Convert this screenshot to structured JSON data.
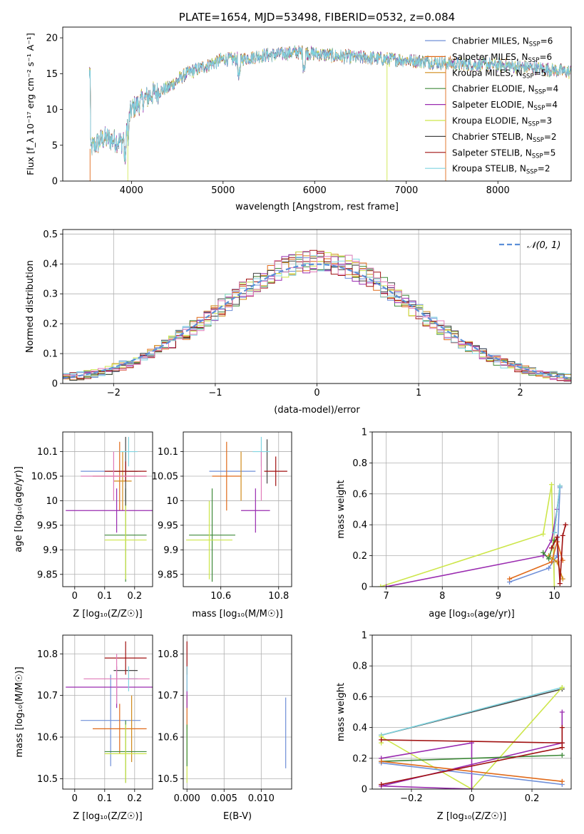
{
  "colors": {
    "chabrier_miles": "#6f8fd8",
    "salpeter_miles": "#e06a1a",
    "kroupa_miles": "#d18a1a",
    "chabrier_elodie": "#3f8a3a",
    "salpeter_elodie": "#9a2bb0",
    "kroupa_elodie": "#cde64a",
    "chabrier_stelib": "#444444",
    "salpeter_stelib": "#a01010",
    "kroupa_stelib": "#7fd4e0",
    "pink": "#e07ab8",
    "gaussian": "#5b8fd8",
    "grid": "#b0b0b0"
  },
  "chart_data": [
    {
      "id": "spectrum",
      "type": "line",
      "title": "PLATE=1654, MJD=53498, FIBERID=0532, z=0.084",
      "xlabel": "wavelength [Angstrom, rest frame]",
      "ylabel": "Flux [f_λ 10⁻¹⁷ erg cm⁻² s⁻¹ A⁻¹]",
      "xlim": [
        3250,
        8800
      ],
      "ylim": [
        0,
        21.5
      ],
      "xticks": [
        4000,
        5000,
        6000,
        7000,
        8000
      ],
      "yticks": [
        0,
        5,
        10,
        15,
        20
      ],
      "legend_position": "top-right",
      "continuum": {
        "x": [
          3550,
          3700,
          3900,
          4000,
          4200,
          4400,
          4600,
          4800,
          5000,
          5200,
          5400,
          5600,
          5800,
          6000,
          6200,
          6400,
          6600,
          6800,
          7000,
          7200,
          7400,
          7600,
          7800,
          8000,
          8200,
          8400,
          8600,
          8800
        ],
        "y": [
          4.5,
          6.0,
          5.5,
          10.0,
          12.0,
          13.0,
          15.0,
          16.0,
          17.0,
          17.0,
          17.5,
          17.7,
          18.0,
          17.8,
          17.5,
          17.3,
          17.2,
          17.0,
          16.9,
          16.7,
          16.5,
          16.3,
          16.3,
          16.2,
          16.0,
          15.8,
          15.5,
          15.2
        ]
      },
      "series": [
        {
          "name": "Chabrier MILES, N_SSP=6",
          "name_main": "Chabrier MILES, N",
          "name_sub": "SSP",
          "name_end": "=6",
          "color_key": "chabrier_miles"
        },
        {
          "name": "Salpeter MILES, N_SSP=6",
          "name_main": "Salpeter MILES, N",
          "name_sub": "SSP",
          "name_end": "=6",
          "color_key": "salpeter_miles"
        },
        {
          "name": "Kroupa MILES, N_SSP=5",
          "name_main": "Kroupa MILES, N",
          "name_sub": "SSP",
          "name_end": "=5",
          "color_key": "kroupa_miles"
        },
        {
          "name": "Chabrier ELODIE, N_SSP=4",
          "name_main": "Chabrier ELODIE, N",
          "name_sub": "SSP",
          "name_end": "=4",
          "color_key": "chabrier_elodie"
        },
        {
          "name": "Salpeter ELODIE, N_SSP=4",
          "name_main": "Salpeter ELODIE, N",
          "name_sub": "SSP",
          "name_end": "=4",
          "color_key": "salpeter_elodie"
        },
        {
          "name": "Kroupa ELODIE, N_SSP=3",
          "name_main": "Kroupa ELODIE, N",
          "name_sub": "SSP",
          "name_end": "=3",
          "color_key": "kroupa_elodie"
        },
        {
          "name": "Chabrier STELIB, N_SSP=2",
          "name_main": "Chabrier STELIB, N",
          "name_sub": "SSP",
          "name_end": "=2",
          "color_key": "chabrier_stelib"
        },
        {
          "name": "Salpeter STELIB, N_SSP=5",
          "name_main": "Salpeter STELIB, N",
          "name_sub": "SSP",
          "name_end": "=5",
          "color_key": "salpeter_stelib"
        },
        {
          "name": "Kroupa STELIB, N_SSP=2",
          "name_main": "Kroupa STELIB, N",
          "name_sub": "SSP",
          "name_end": "=2",
          "color_key": "kroupa_stelib"
        }
      ]
    },
    {
      "id": "residuals",
      "type": "step-histogram",
      "xlabel": "(data-model)/error",
      "ylabel": "Normed distribution",
      "xlim": [
        -2.5,
        2.5
      ],
      "ylim": [
        0,
        0.515
      ],
      "xticks": [
        -2,
        -1,
        0,
        1,
        2
      ],
      "yticks": [
        0.0,
        0.1,
        0.2,
        0.3,
        0.4,
        0.5
      ],
      "gaussian_label": "𝒩(0, 1)",
      "bin_width": 0.1,
      "envelope": [
        0.02,
        0.023,
        0.026,
        0.03,
        0.034,
        0.039,
        0.045,
        0.052,
        0.06,
        0.068,
        0.078,
        0.088,
        0.1,
        0.112,
        0.126,
        0.14,
        0.155,
        0.17,
        0.186,
        0.203,
        0.22,
        0.238,
        0.255,
        0.272,
        0.29,
        0.307,
        0.323,
        0.34,
        0.355,
        0.368,
        0.38,
        0.39,
        0.398,
        0.404,
        0.408,
        0.41,
        0.41,
        0.408,
        0.404,
        0.398,
        0.39,
        0.38,
        0.368,
        0.355,
        0.34,
        0.323,
        0.307,
        0.29,
        0.272,
        0.255,
        0.238,
        0.22,
        0.203,
        0.186,
        0.17,
        0.155,
        0.14,
        0.126,
        0.112,
        0.1,
        0.088,
        0.078,
        0.068,
        0.06,
        0.052,
        0.045,
        0.039,
        0.034,
        0.03,
        0.026,
        0.023,
        0.02
      ],
      "hist_start": -2.5
    },
    {
      "id": "age_vs_Z",
      "type": "errorbar",
      "xlabel": "Z [log₁₀(Z/Z☉)]",
      "ylabel": "age  [log₁₀(age/yr)]",
      "xlim": [
        -0.04,
        0.26
      ],
      "ylim": [
        9.825,
        10.14
      ],
      "xticks": [
        0.0,
        0.1,
        0.2
      ],
      "yticks": [
        9.85,
        9.9,
        9.95,
        10.0,
        10.05,
        10.1
      ],
      "points": [
        {
          "c": "chabrier_miles",
          "x": 0.12,
          "xe": 0.1,
          "y": 10.06,
          "ye": 0.0
        },
        {
          "c": "salpeter_miles",
          "x": 0.15,
          "xe": 0.09,
          "y": 10.05,
          "ye": 0.07
        },
        {
          "c": "kroupa_miles",
          "x": 0.16,
          "xe": 0.03,
          "y": 10.04,
          "ye": 0.06
        },
        {
          "c": "chabrier_elodie",
          "x": 0.17,
          "xe": 0.07,
          "y": 9.93,
          "ye": 0.095
        },
        {
          "c": "salpeter_elodie",
          "x": 0.14,
          "xe": 0.17,
          "y": 9.98,
          "ye": 0.045
        },
        {
          "c": "kroupa_elodie",
          "x": 0.17,
          "xe": 0.07,
          "y": 9.92,
          "ye": 0.08
        },
        {
          "c": "chabrier_stelib",
          "x": 0.17,
          "xe": 0.04,
          "y": 10.06,
          "ye": 0.07
        },
        {
          "c": "salpeter_stelib",
          "x": 0.17,
          "xe": 0.07,
          "y": 10.06,
          "ye": 0.02
        },
        {
          "c": "kroupa_stelib",
          "x": 0.18,
          "xe": 0.03,
          "y": 10.1,
          "ye": 0.03
        },
        {
          "c": "pink",
          "x": 0.13,
          "xe": 0.11,
          "y": 10.05,
          "ye": 0.05
        }
      ]
    },
    {
      "id": "age_vs_mass",
      "type": "errorbar",
      "xlabel": "mass [log₁₀(M/M☉)]",
      "ylabel": "",
      "xlim": [
        10.47,
        10.845
      ],
      "ylim": [
        9.825,
        10.14
      ],
      "xticks": [
        10.6,
        10.8
      ],
      "yticks": [
        9.85,
        9.9,
        9.95,
        10.0,
        10.05,
        10.1
      ],
      "points": [
        {
          "c": "chabrier_miles",
          "x": 10.64,
          "xe": 0.08,
          "y": 10.06,
          "ye": 0.0
        },
        {
          "c": "salpeter_miles",
          "x": 10.62,
          "xe": 0.05,
          "y": 10.05,
          "ye": 0.07
        },
        {
          "c": "kroupa_miles",
          "x": 10.67,
          "xe": 0.0,
          "y": 10.05,
          "ye": 0.05
        },
        {
          "c": "chabrier_elodie",
          "x": 10.57,
          "xe": 0.08,
          "y": 9.93,
          "ye": 0.095
        },
        {
          "c": "salpeter_elodie",
          "x": 10.72,
          "xe": 0.05,
          "y": 9.98,
          "ye": 0.045
        },
        {
          "c": "kroupa_elodie",
          "x": 10.56,
          "xe": 0.08,
          "y": 9.92,
          "ye": 0.08
        },
        {
          "c": "chabrier_stelib",
          "x": 10.76,
          "xe": 0.0,
          "y": 10.08,
          "ye": 0.045
        },
        {
          "c": "salpeter_stelib",
          "x": 10.79,
          "xe": 0.04,
          "y": 10.06,
          "ye": 0.03
        },
        {
          "c": "kroupa_stelib",
          "x": 10.74,
          "xe": 0.03,
          "y": 10.1,
          "ye": 0.03
        },
        {
          "c": "pink",
          "x": 10.74,
          "xe": 0.0,
          "y": 10.05,
          "ye": 0.05
        }
      ]
    },
    {
      "id": "weight_vs_age",
      "type": "line",
      "xlabel": "age  [log₁₀(age/yr)]",
      "ylabel": "mass weight",
      "xlim": [
        6.75,
        10.3
      ],
      "ylim": [
        0,
        1.0
      ],
      "xticks": [
        7,
        8,
        9,
        10
      ],
      "yticks": [
        0.0,
        0.2,
        0.4,
        0.6,
        0.8,
        1.0
      ],
      "series": [
        {
          "c": "kroupa_elodie",
          "x": [
            6.9,
            9.8,
            9.95,
            10.0
          ],
          "y": [
            0.0,
            0.34,
            0.66,
            0.0
          ]
        },
        {
          "c": "salpeter_elodie",
          "x": [
            7.0,
            9.8,
            9.95,
            10.05
          ],
          "y": [
            0.0,
            0.2,
            0.3,
            0.5
          ]
        },
        {
          "c": "chabrier_miles",
          "x": [
            9.2,
            9.9,
            10.05,
            10.1
          ],
          "y": [
            0.03,
            0.12,
            0.2,
            0.64
          ]
        },
        {
          "c": "salpeter_miles",
          "x": [
            9.2,
            9.95,
            10.05,
            10.15
          ],
          "y": [
            0.05,
            0.16,
            0.29,
            0.17
          ]
        },
        {
          "c": "kroupa_miles",
          "x": [
            9.9,
            10.05,
            10.15
          ],
          "y": [
            0.2,
            0.16,
            0.05
          ]
        },
        {
          "c": "chabrier_elodie",
          "x": [
            9.8,
            9.9,
            10.0
          ],
          "y": [
            0.22,
            0.18,
            0.3
          ]
        },
        {
          "c": "chabrier_stelib",
          "x": [
            10.0,
            10.1
          ],
          "y": [
            0.35,
            0.65
          ]
        },
        {
          "c": "kroupa_stelib",
          "x": [
            10.0,
            10.1
          ],
          "y": [
            0.35,
            0.65
          ]
        },
        {
          "c": "salpeter_stelib",
          "x": [
            9.95,
            10.05,
            10.1,
            10.15,
            10.2
          ],
          "y": [
            0.25,
            0.32,
            0.02,
            0.33,
            0.4
          ]
        }
      ]
    },
    {
      "id": "mass_vs_Z",
      "type": "errorbar",
      "xlabel": "Z [log₁₀(Z/Z☉)]",
      "ylabel": "mass [log₁₀(M/M☉)]",
      "xlim": [
        -0.04,
        0.26
      ],
      "ylim": [
        10.475,
        10.845
      ],
      "xticks": [
        0.0,
        0.1,
        0.2
      ],
      "yticks": [
        10.5,
        10.6,
        10.7,
        10.8
      ],
      "points": [
        {
          "c": "chabrier_miles",
          "x": 0.12,
          "xe": 0.1,
          "y": 10.64,
          "ye": 0.11
        },
        {
          "c": "salpeter_miles",
          "x": 0.15,
          "xe": 0.09,
          "y": 10.62,
          "ye": 0.06
        },
        {
          "c": "kroupa_miles",
          "x": 0.19,
          "xe": 0.0,
          "y": 10.62,
          "ye": 0.08
        },
        {
          "c": "chabrier_elodie",
          "x": 0.17,
          "xe": 0.07,
          "y": 10.565,
          "ye": 0.075
        },
        {
          "c": "salpeter_elodie",
          "x": 0.14,
          "xe": 0.17,
          "y": 10.72,
          "ye": 0.05
        },
        {
          "c": "kroupa_elodie",
          "x": 0.17,
          "xe": 0.07,
          "y": 10.56,
          "ye": 0.07
        },
        {
          "c": "chabrier_stelib",
          "x": 0.17,
          "xe": 0.04,
          "y": 10.76,
          "ye": 0.0
        },
        {
          "c": "salpeter_stelib",
          "x": 0.17,
          "xe": 0.07,
          "y": 10.79,
          "ye": 0.04
        },
        {
          "c": "kroupa_stelib",
          "x": 0.18,
          "xe": 0.03,
          "y": 10.74,
          "ye": 0.03
        },
        {
          "c": "pink",
          "x": 0.14,
          "xe": 0.11,
          "y": 10.74,
          "ye": 0.06
        }
      ]
    },
    {
      "id": "mass_vs_EBV",
      "type": "errorbar",
      "xlabel": "E(B-V)",
      "ylabel": "",
      "xlim": [
        -0.0005,
        0.0141
      ],
      "ylim": [
        10.475,
        10.845
      ],
      "xticks": [
        0.0,
        0.005,
        0.01
      ],
      "xtick_labels": [
        "0.000",
        "0.005",
        "0.010"
      ],
      "yticks": [
        10.5,
        10.6,
        10.7,
        10.8
      ],
      "points": [
        {
          "c": "chabrier_miles",
          "x": 0.0133,
          "xe": 0.0,
          "y": 10.61,
          "ye": 0.085
        },
        {
          "c": "salpeter_miles",
          "x": 0.0,
          "xe": 0.0,
          "y": 10.66,
          "ye": 0.04
        },
        {
          "c": "kroupa_elodie",
          "x": 0.0,
          "xe": 0.0,
          "y": 10.56,
          "ye": 0.07
        },
        {
          "c": "chabrier_elodie",
          "x": 0.0,
          "xe": 0.0,
          "y": 10.58,
          "ye": 0.05
        },
        {
          "c": "salpeter_elodie",
          "x": 0.0,
          "xe": 0.0,
          "y": 10.72,
          "ye": 0.05
        },
        {
          "c": "salpeter_stelib",
          "x": 0.0,
          "xe": 0.0,
          "y": 10.79,
          "ye": 0.04
        },
        {
          "c": "kroupa_stelib",
          "x": 0.0,
          "xe": 0.0,
          "y": 10.74,
          "ye": 0.03
        }
      ]
    },
    {
      "id": "weight_vs_Z",
      "type": "line",
      "xlabel": "Z [log₁₀(Z/Z☉)]",
      "ylabel": "mass weight",
      "xlim": [
        -0.33,
        0.33
      ],
      "ylim": [
        0,
        1.0
      ],
      "xticks": [
        -0.2,
        0.0,
        0.2
      ],
      "yticks": [
        0.0,
        0.2,
        0.4,
        0.6,
        0.8,
        1.0
      ],
      "series": [
        {
          "c": "chabrier_stelib",
          "x": [
            -0.3,
            0.3
          ],
          "y": [
            0.35,
            0.65
          ]
        },
        {
          "c": "kroupa_stelib",
          "x": [
            -0.3,
            0.3
          ],
          "y": [
            0.35,
            0.66
          ]
        },
        {
          "c": "kroupa_elodie",
          "x": [
            -0.3,
            -0.3,
            0.0,
            0.3
          ],
          "y": [
            0.3,
            0.34,
            0.0,
            0.66
          ]
        },
        {
          "c": "salpeter_elodie",
          "x": [
            -0.3,
            0.0,
            0.0,
            -0.3,
            0.3,
            0.3
          ],
          "y": [
            0.2,
            0.3,
            0.0,
            0.02,
            0.3,
            0.5
          ]
        },
        {
          "c": "chabrier_elodie",
          "x": [
            -0.3,
            0.3
          ],
          "y": [
            0.18,
            0.22
          ]
        },
        {
          "c": "chabrier_miles",
          "x": [
            -0.3,
            0.3
          ],
          "y": [
            0.17,
            0.03
          ]
        },
        {
          "c": "salpeter_miles",
          "x": [
            -0.3,
            0.3
          ],
          "y": [
            0.18,
            0.05
          ]
        },
        {
          "c": "salpeter_stelib",
          "x": [
            -0.3,
            0.3,
            0.3,
            0.3,
            -0.3
          ],
          "y": [
            0.03,
            0.27,
            0.4,
            0.3,
            0.32
          ]
        }
      ]
    }
  ]
}
